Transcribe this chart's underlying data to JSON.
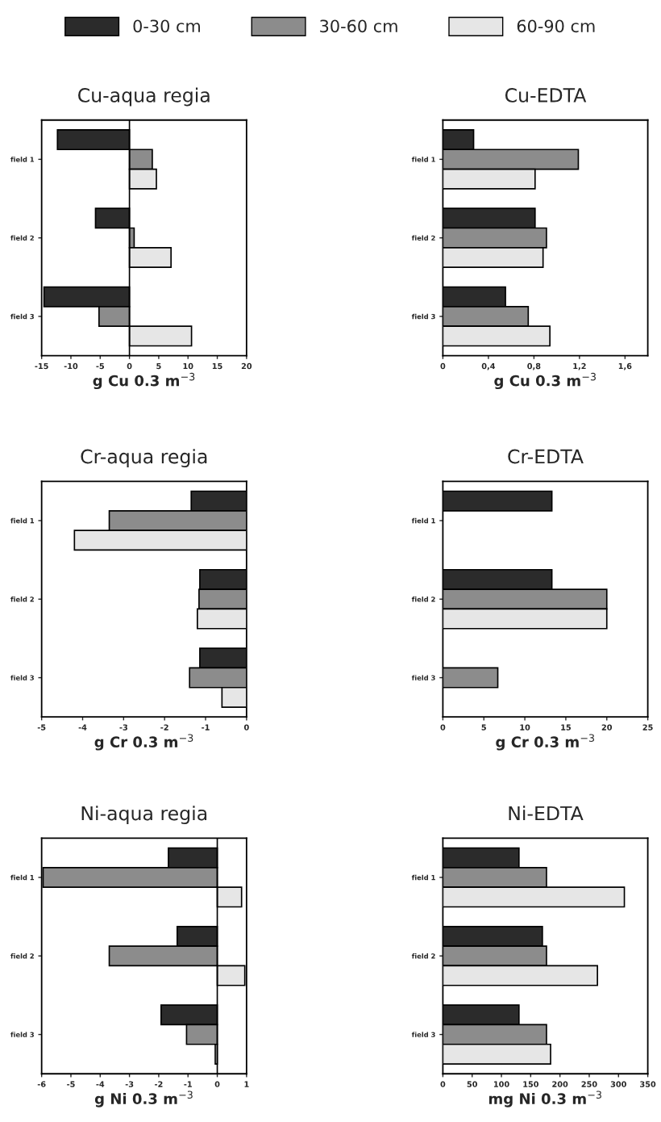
{
  "chart_data": [
    {
      "type": "bar",
      "orientation": "horizontal",
      "title": "Cu-aqua regia",
      "xlabel": "g Cu 0.3 m$^{−3}$",
      "categories": [
        "field 1",
        "field 2",
        "field 3"
      ],
      "xlim": [
        -15,
        20
      ],
      "xticks": [
        -15,
        -10,
        -5,
        0,
        5,
        10,
        15,
        20
      ],
      "legend": "top",
      "ref_lines": [
        {
          "axis": "x",
          "value": 0
        }
      ],
      "series": [
        {
          "name": "0-30 cm",
          "color": "#2b2b2b",
          "values": [
            -12.3,
            -5.8,
            -14.6
          ]
        },
        {
          "name": "30-60 cm",
          "color": "#8c8c8c",
          "values": [
            3.9,
            0.8,
            -5.2
          ]
        },
        {
          "name": "60-90 cm",
          "color": "#e6e6e6",
          "values": [
            4.6,
            7.1,
            10.6
          ]
        }
      ]
    },
    {
      "type": "bar",
      "orientation": "horizontal",
      "title": "Cu-EDTA",
      "xlabel": "g Cu 0.3 m$^{−3}$",
      "categories": [
        "field 1",
        "field 2",
        "field 3"
      ],
      "xlim": [
        0,
        1.8
      ],
      "xticks": [
        0,
        {
          "value": 0.4,
          "label": "0,4"
        },
        {
          "value": 0.8,
          "label": "0,8"
        },
        {
          "value": 1.2,
          "label": "1,2"
        },
        {
          "value": 1.6,
          "label": "1,6"
        }
      ],
      "series": [
        {
          "color": "#2b2b2b",
          "values": [
            0.27,
            0.81,
            0.55
          ]
        },
        {
          "color": "#8c8c8c",
          "values": [
            1.19,
            0.91,
            0.75
          ]
        },
        {
          "color": "#e6e6e6",
          "values": [
            0.81,
            0.88,
            0.94
          ]
        }
      ]
    },
    {
      "type": "bar",
      "orientation": "horizontal",
      "title": "Cr-aqua regia",
      "xlabel": "g Cr 0.3 m$^{−3}$",
      "categories": [
        "field 1",
        "field 2",
        "field 3"
      ],
      "xlim": [
        -5,
        0
      ],
      "xticks": [
        -5,
        -4,
        -3,
        -2,
        -1,
        0
      ],
      "series": [
        {
          "color": "#2b2b2b",
          "values": [
            -1.35,
            -1.14,
            -1.14
          ]
        },
        {
          "color": "#8c8c8c",
          "values": [
            -3.35,
            -1.16,
            -1.39
          ]
        },
        {
          "color": "#e6e6e6",
          "values": [
            -4.2,
            -1.2,
            -0.6
          ]
        }
      ]
    },
    {
      "type": "bar",
      "orientation": "horizontal",
      "title": "Cr-EDTA",
      "xlabel": "g Cr 0.3 m$^{−3}$",
      "categories": [
        "field 1",
        "field 2",
        "field 3"
      ],
      "xlim": [
        0,
        25
      ],
      "xticks": [
        0,
        5,
        10,
        15,
        20,
        25
      ],
      "series": [
        {
          "color": "#2b2b2b",
          "values": [
            13.3,
            13.3,
            null
          ]
        },
        {
          "color": "#8c8c8c",
          "values": [
            null,
            20,
            6.7
          ]
        },
        {
          "color": "#e6e6e6",
          "values": [
            null,
            20,
            null
          ]
        }
      ]
    },
    {
      "type": "bar",
      "orientation": "horizontal",
      "title": "Ni-aqua regia",
      "xlabel": "g Ni 0.3 m$^{−3}$",
      "categories": [
        "field 1",
        "field 2",
        "field 3"
      ],
      "xlim": [
        -6,
        1
      ],
      "xticks": [
        -6,
        -5,
        -4,
        -3,
        -2,
        -1,
        0,
        1
      ],
      "ref_lines": [
        {
          "axis": "x",
          "value": 0
        }
      ],
      "series": [
        {
          "color": "#2b2b2b",
          "values": [
            -1.67,
            -1.37,
            -1.92
          ]
        },
        {
          "color": "#8c8c8c",
          "values": [
            -5.95,
            -3.69,
            -1.05
          ]
        },
        {
          "color": "#e6e6e6",
          "values": [
            0.83,
            0.94,
            -0.07
          ]
        }
      ]
    },
    {
      "type": "bar",
      "orientation": "horizontal",
      "title": "Ni-EDTA",
      "xlabel": "mg Ni 0.3 m$^{−3}$",
      "categories": [
        "field 1",
        "field 2",
        "field 3"
      ],
      "xlim": [
        0,
        350
      ],
      "xticks": [
        0,
        50,
        100,
        150,
        200,
        250,
        300,
        350
      ],
      "series": [
        {
          "color": "#2b2b2b",
          "values": [
            130,
            170,
            130
          ]
        },
        {
          "color": "#8c8c8c",
          "values": [
            177,
            177,
            177
          ]
        },
        {
          "color": "#e6e6e6",
          "values": [
            310,
            264,
            184
          ]
        }
      ]
    }
  ]
}
